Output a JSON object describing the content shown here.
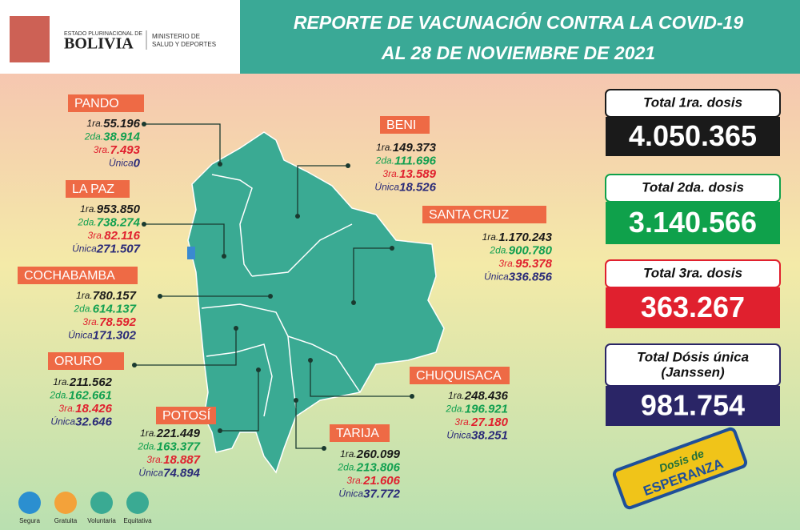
{
  "header": {
    "logo_state": "ESTADO PLURINACIONAL DE",
    "logo_country": "BOLIVIA",
    "ministry": [
      "MINISTERIO DE",
      "SALUD Y DEPORTES"
    ],
    "title": [
      "REPORTE DE VACUNACIÓN CONTRA LA COVID-19",
      "AL 28 DE NOVIEMBRE DE 2021"
    ]
  },
  "departments": [
    {
      "name": "PANDO",
      "doses": [
        {
          "label": "1ra.",
          "value": "55.196"
        },
        {
          "label": "2da.",
          "value": "38.914"
        },
        {
          "label": "3ra.",
          "value": "7.493"
        },
        {
          "label": "Única",
          "value": "0"
        }
      ]
    },
    {
      "name": "BENI",
      "doses": [
        {
          "label": "1ra.",
          "value": "149.373"
        },
        {
          "label": "2da.",
          "value": "111.696"
        },
        {
          "label": "3ra.",
          "value": "13.589"
        },
        {
          "label": "Única",
          "value": "18.526"
        }
      ]
    },
    {
      "name": "LA  PAZ",
      "doses": [
        {
          "label": "1ra.",
          "value": "953.850"
        },
        {
          "label": "2da.",
          "value": "738.274"
        },
        {
          "label": "3ra.",
          "value": "82.116"
        },
        {
          "label": "Única",
          "value": "271.507"
        }
      ]
    },
    {
      "name": "SANTA CRUZ",
      "doses": [
        {
          "label": "1ra.",
          "value": "1.170.243"
        },
        {
          "label": "2da.",
          "value": "900.780"
        },
        {
          "label": "3ra.",
          "value": "95.378"
        },
        {
          "label": "Única",
          "value": "336.856"
        }
      ]
    },
    {
      "name": "COCHABAMBA",
      "doses": [
        {
          "label": "1ra.",
          "value": "780.157"
        },
        {
          "label": "2da.",
          "value": "614.137"
        },
        {
          "label": "3ra.",
          "value": "78.592"
        },
        {
          "label": "Única",
          "value": "171.302"
        }
      ]
    },
    {
      "name": "ORURO",
      "doses": [
        {
          "label": "1ra.",
          "value": "211.562"
        },
        {
          "label": "2da.",
          "value": "162.661"
        },
        {
          "label": "3ra.",
          "value": "18.426"
        },
        {
          "label": "Única",
          "value": "32.646"
        }
      ]
    },
    {
      "name": "CHUQUISACA",
      "doses": [
        {
          "label": "1ra.",
          "value": "248.436"
        },
        {
          "label": "2da.",
          "value": "196.921"
        },
        {
          "label": "3ra.",
          "value": "27.180"
        },
        {
          "label": "Única",
          "value": "38.251"
        }
      ]
    },
    {
      "name": "POTOSÍ",
      "doses": [
        {
          "label": "1ra.",
          "value": "221.449"
        },
        {
          "label": "2da.",
          "value": "163.377"
        },
        {
          "label": "3ra.",
          "value": "18.887"
        },
        {
          "label": "Única",
          "value": "74.894"
        }
      ]
    },
    {
      "name": "TARIJA",
      "doses": [
        {
          "label": "1ra.",
          "value": "260.099"
        },
        {
          "label": "2da.",
          "value": "213.806"
        },
        {
          "label": "3ra.",
          "value": "21.606"
        },
        {
          "label": "Única",
          "value": "37.772"
        }
      ]
    }
  ],
  "totals": [
    {
      "label": [
        "Total 1ra. dosis"
      ],
      "value": "4.050.365"
    },
    {
      "label": [
        "Total 2da. dosis"
      ],
      "value": "3.140.566"
    },
    {
      "label": [
        "Total 3ra. dosis"
      ],
      "value": "363.267"
    },
    {
      "label": [
        "Total Dósis única",
        "(Janssen)"
      ],
      "value": "981.754"
    }
  ],
  "badges": [
    "Segura",
    "Gratuita",
    "Voluntaria",
    "Equitativa"
  ],
  "campaign": [
    "Dosis de",
    "ESPERANZA"
  ]
}
